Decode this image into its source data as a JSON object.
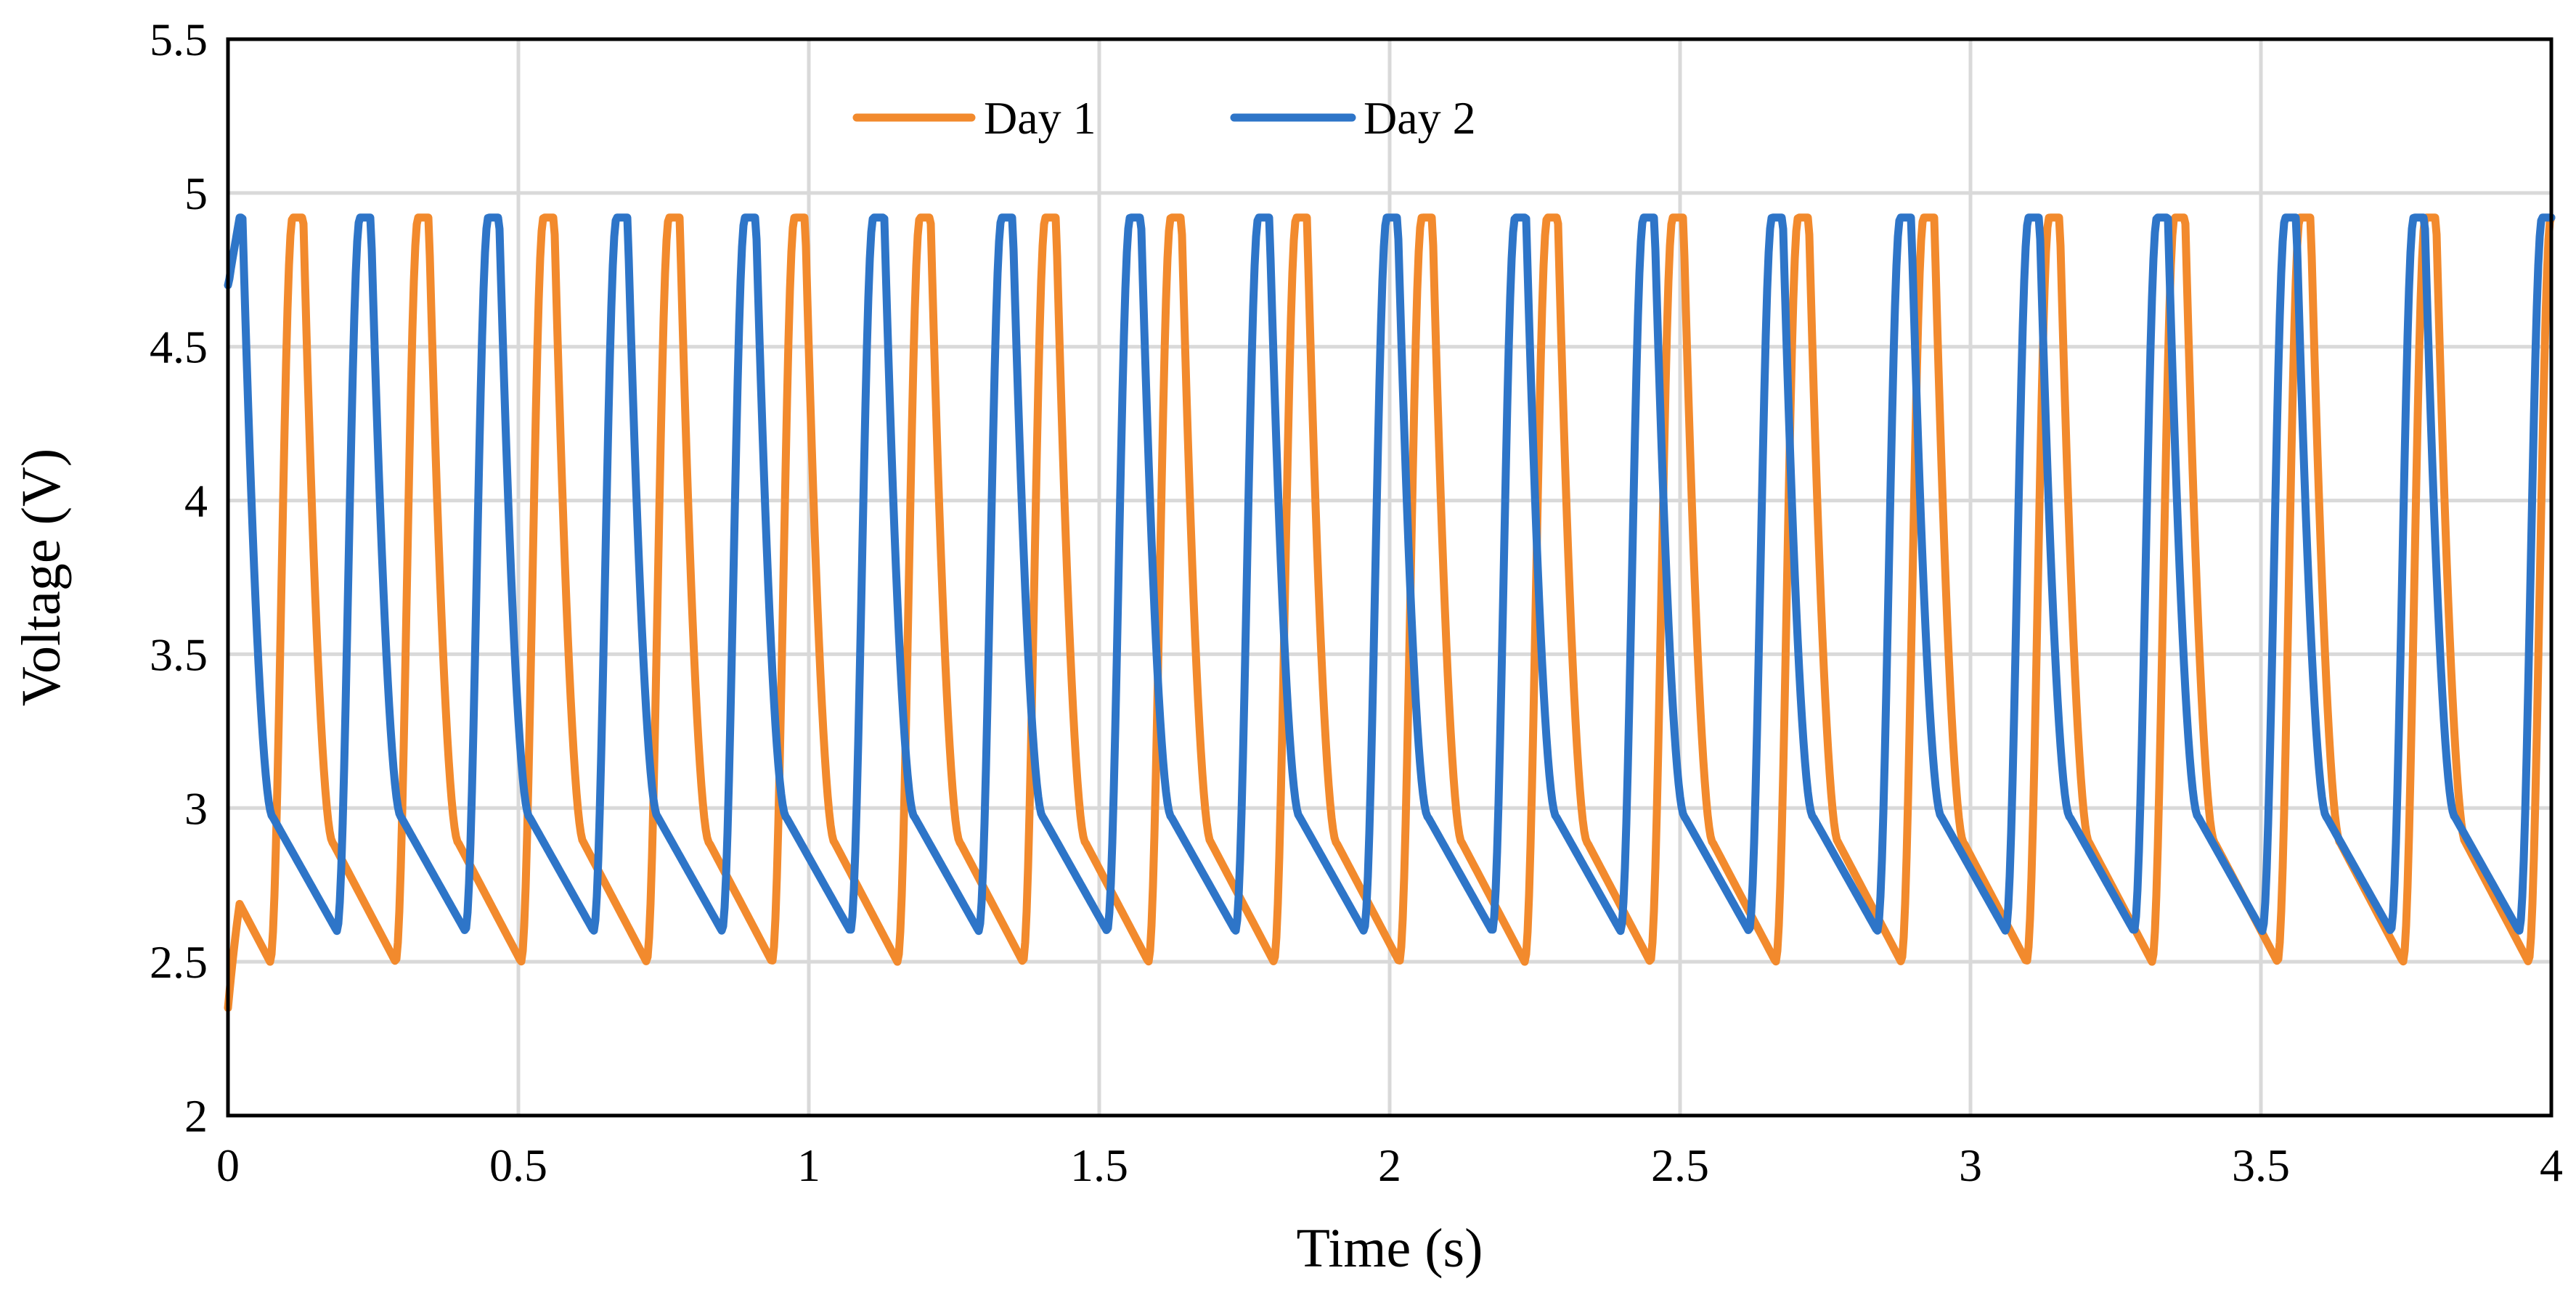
{
  "chart_data": {
    "type": "line",
    "title": "",
    "xlabel": "Time (s)",
    "ylabel": "Voltage (V)",
    "xlim": [
      0,
      4
    ],
    "ylim": [
      2,
      5.5
    ],
    "x_ticks": [
      0,
      0.5,
      1,
      1.5,
      2,
      2.5,
      3,
      3.5,
      4
    ],
    "x_tick_labels": [
      "0",
      "0.5",
      "1",
      "1.5",
      "2",
      "2.5",
      "3",
      "3.5",
      "4"
    ],
    "y_ticks": [
      2,
      2.5,
      3,
      3.5,
      4,
      4.5,
      5,
      5.5
    ],
    "y_tick_labels": [
      "2",
      "2.5",
      "3",
      "3.5",
      "4",
      "4.5",
      "5",
      "5.5"
    ],
    "grid": true,
    "legend_position": "top-center",
    "series": [
      {
        "name": "Day 1",
        "color": "#f28a2d",
        "start_value": 2.35,
        "period_s": 0.216,
        "first_peak_s": 0.12,
        "peak_value": 4.92,
        "trough_value": 2.5
      },
      {
        "name": "Day 2",
        "color": "#2e75c8",
        "start_value": 4.7,
        "period_s": 0.221,
        "first_peak_s": 0.015,
        "peak_value": 4.92,
        "trough_value": 2.6
      }
    ]
  }
}
